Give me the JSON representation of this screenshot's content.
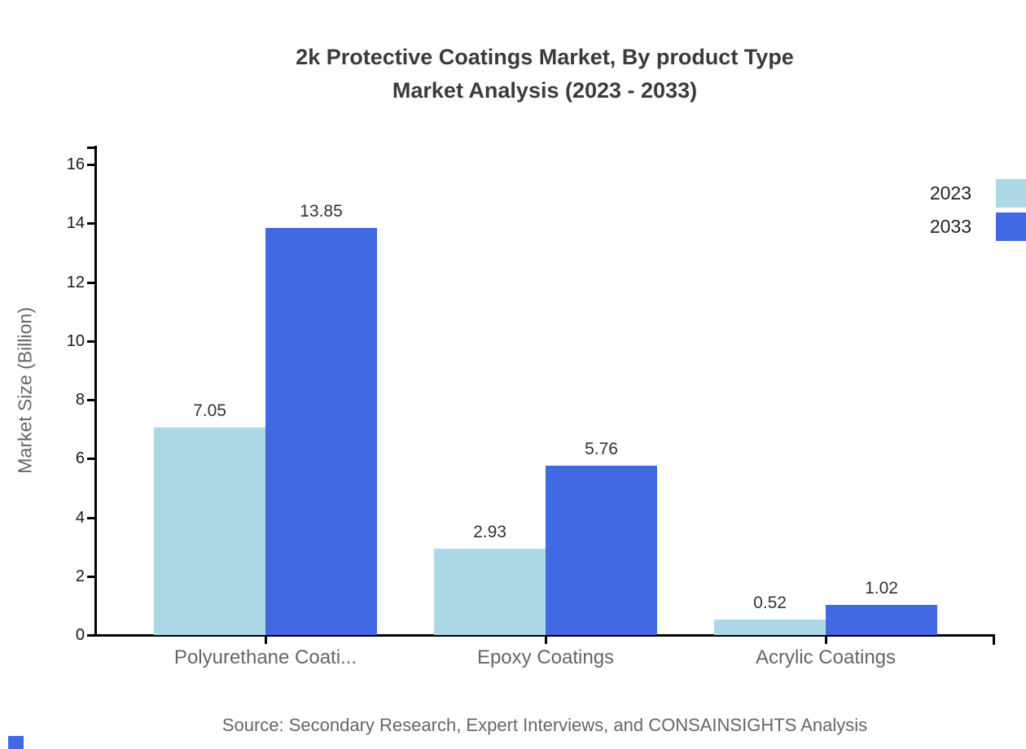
{
  "title": {
    "line1": "2k Protective Coatings Market, By product Type",
    "line2": "Market Analysis (2023 - 2033)"
  },
  "chart_data": {
    "type": "bar",
    "title": "2k Protective Coatings Market, By product Type Market Analysis (2023 - 2033)",
    "categories": [
      "Polyurethane Coati...",
      "Epoxy Coatings",
      "Acrylic Coatings"
    ],
    "series": [
      {
        "name": "2023",
        "color": "#ADD8E6",
        "values": [
          7.05,
          2.93,
          0.52
        ]
      },
      {
        "name": "2033",
        "color": "#4169E1",
        "values": [
          13.85,
          5.76,
          1.02
        ]
      }
    ],
    "xlabel": "",
    "ylabel": "Market Size (Billion)",
    "ylim": [
      0,
      16
    ],
    "yticks": [
      0,
      2,
      4,
      6,
      8,
      10,
      12,
      14,
      16
    ],
    "grid": false,
    "legend_position": "top-right",
    "value_labels_shown": true
  },
  "legend": {
    "items": [
      {
        "label": "2023",
        "color": "#ADD8E6"
      },
      {
        "label": "2033",
        "color": "#4169E1"
      }
    ]
  },
  "source_text": "Source: Secondary Research, Expert Interviews, and CONSAINSIGHTS Analysis",
  "colors": {
    "series_2023": "#ADD8E6",
    "series_2033": "#4169E1",
    "axis": "#000000",
    "title_text": "#3b3b3b",
    "muted_text": "#666666",
    "value_label_text": "#333333"
  }
}
